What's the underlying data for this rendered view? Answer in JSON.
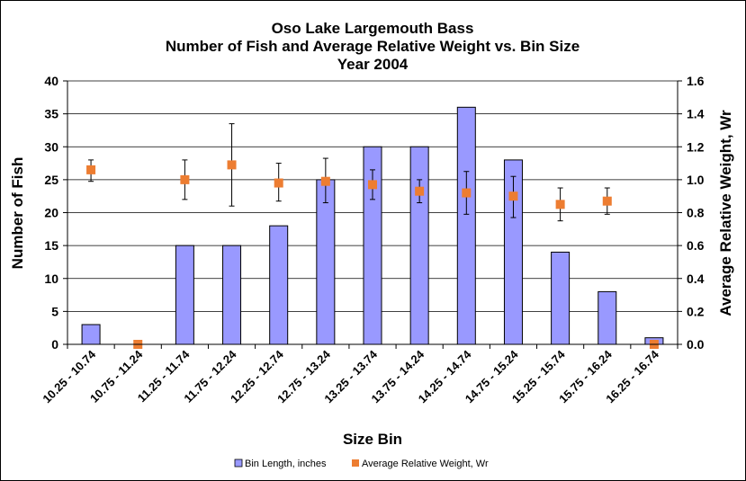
{
  "chart_data": {
    "type": "bar",
    "title_lines": [
      "Oso Lake Largemouth Bass",
      "Number of Fish and Average Relative Weight vs. Bin Size",
      "Year 2004"
    ],
    "xlabel": "Size Bin",
    "ylabel": "Number of Fish",
    "y2label": "Average Relative Weight, Wr",
    "ylim": [
      0,
      40
    ],
    "yticks": [
      0,
      5,
      10,
      15,
      20,
      25,
      30,
      35,
      40
    ],
    "y2lim": [
      0,
      1.6
    ],
    "y2ticks": [
      "0.0",
      "0.2",
      "0.4",
      "0.6",
      "0.8",
      "1.0",
      "1.2",
      "1.4",
      "1.6"
    ],
    "grid": true,
    "legend_position": "bottom",
    "categories": [
      "10.25 - 10.74",
      "10.75 - 11.24",
      "11.25 - 11.74",
      "11.75 - 12.24",
      "12.25 - 12.74",
      "12.75 - 13.24",
      "13.25 - 13.74",
      "13.75 - 14.24",
      "14.25 - 14.74",
      "14.75 - 15.24",
      "15.25 - 15.74",
      "15.75 - 16.24",
      "16.25 - 16.74"
    ],
    "series": [
      {
        "name": "Bin Length, inches",
        "type": "bar",
        "axis": "left",
        "color": "#9999ff",
        "values": [
          3,
          0,
          15,
          15,
          18,
          25,
          30,
          30,
          36,
          28,
          14,
          8,
          1
        ]
      },
      {
        "name": "Average Relative Weight, Wr",
        "type": "scatter",
        "axis": "right",
        "color": "#ed7d31",
        "values": [
          1.06,
          0.0,
          1.0,
          1.09,
          0.98,
          0.99,
          0.97,
          0.93,
          0.92,
          0.9,
          0.85,
          0.87,
          0.0
        ],
        "error_low": [
          0.99,
          null,
          0.88,
          0.84,
          0.87,
          0.86,
          0.88,
          0.86,
          0.79,
          0.77,
          0.75,
          0.79,
          null
        ],
        "error_high": [
          1.12,
          null,
          1.12,
          1.34,
          1.1,
          1.13,
          1.06,
          1.0,
          1.05,
          1.02,
          0.95,
          0.95,
          null
        ]
      }
    ]
  }
}
